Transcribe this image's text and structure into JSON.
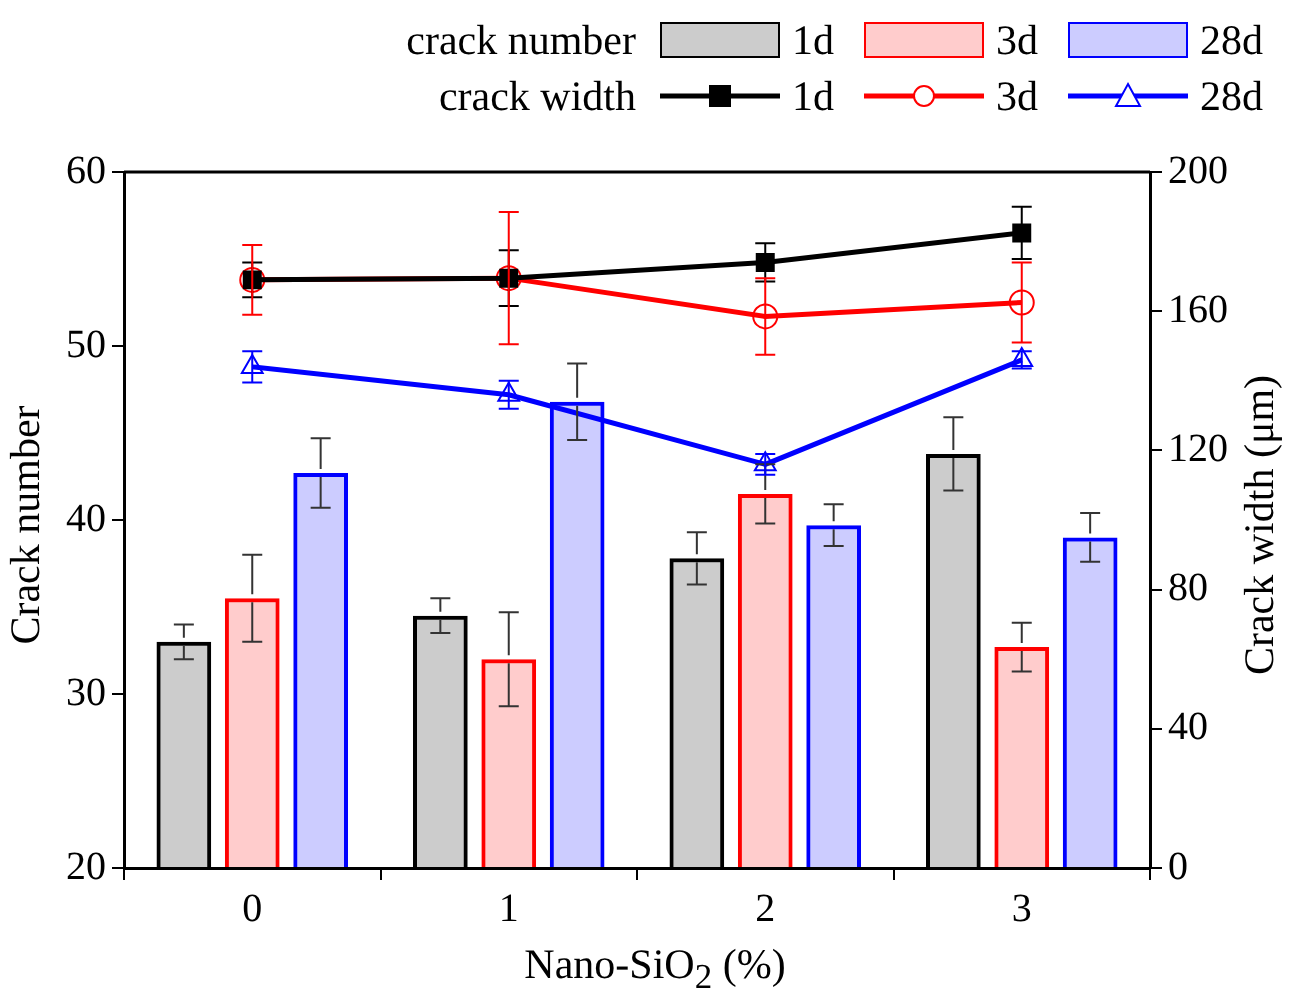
{
  "chart_data": {
    "type": "bar",
    "categories": [
      "0",
      "1",
      "2",
      "3"
    ],
    "xlabel": "Nano-SiO$_{2}$ (%)",
    "ylabel": "Crack number",
    "y2label": "Crack width (μm)",
    "ylim": [
      20,
      60
    ],
    "yticks": [
      20,
      30,
      40,
      50,
      60
    ],
    "y2lim": [
      0,
      200
    ],
    "y2ticks": [
      0,
      40,
      80,
      120,
      160,
      200
    ],
    "grid": false,
    "legend": "top",
    "annotations": [
      "crack number",
      "crack width"
    ],
    "series": [
      {
        "name": "1d",
        "color": "#000000",
        "values": [
          33,
          34.5,
          37.8,
          43.8
        ],
        "errors": [
          1,
          1,
          1.5,
          2.1
        ]
      },
      {
        "name": "3d",
        "color": "#ff0000",
        "values": [
          35.5,
          32,
          41.5,
          32.7
        ],
        "errors": [
          2.5,
          2.7,
          1.7,
          1.4
        ]
      },
      {
        "name": "28d",
        "color": "#0000ff",
        "values": [
          42.7,
          46.8,
          39.7,
          39
        ],
        "errors": [
          2,
          2.2,
          1.2,
          1.4
        ]
      },
      {
        "name": "1d",
        "type": "line",
        "axis": "y2",
        "marker": "square",
        "color": "#000000",
        "values": [
          169,
          169.5,
          174,
          182.5
        ],
        "errors": [
          5,
          8,
          5.5,
          7.5
        ]
      },
      {
        "name": "3d",
        "type": "line",
        "axis": "y2",
        "marker": "circle",
        "color": "#ff0000",
        "values": [
          169,
          169.5,
          158.5,
          162.5
        ],
        "errors": [
          10,
          19,
          11,
          11.5
        ]
      },
      {
        "name": "28d",
        "type": "line",
        "axis": "y2",
        "marker": "triangle",
        "color": "#0000ff",
        "values": [
          144,
          136,
          116,
          146
        ],
        "errors": [
          4.5,
          4,
          3,
          2.5
        ]
      }
    ]
  }
}
